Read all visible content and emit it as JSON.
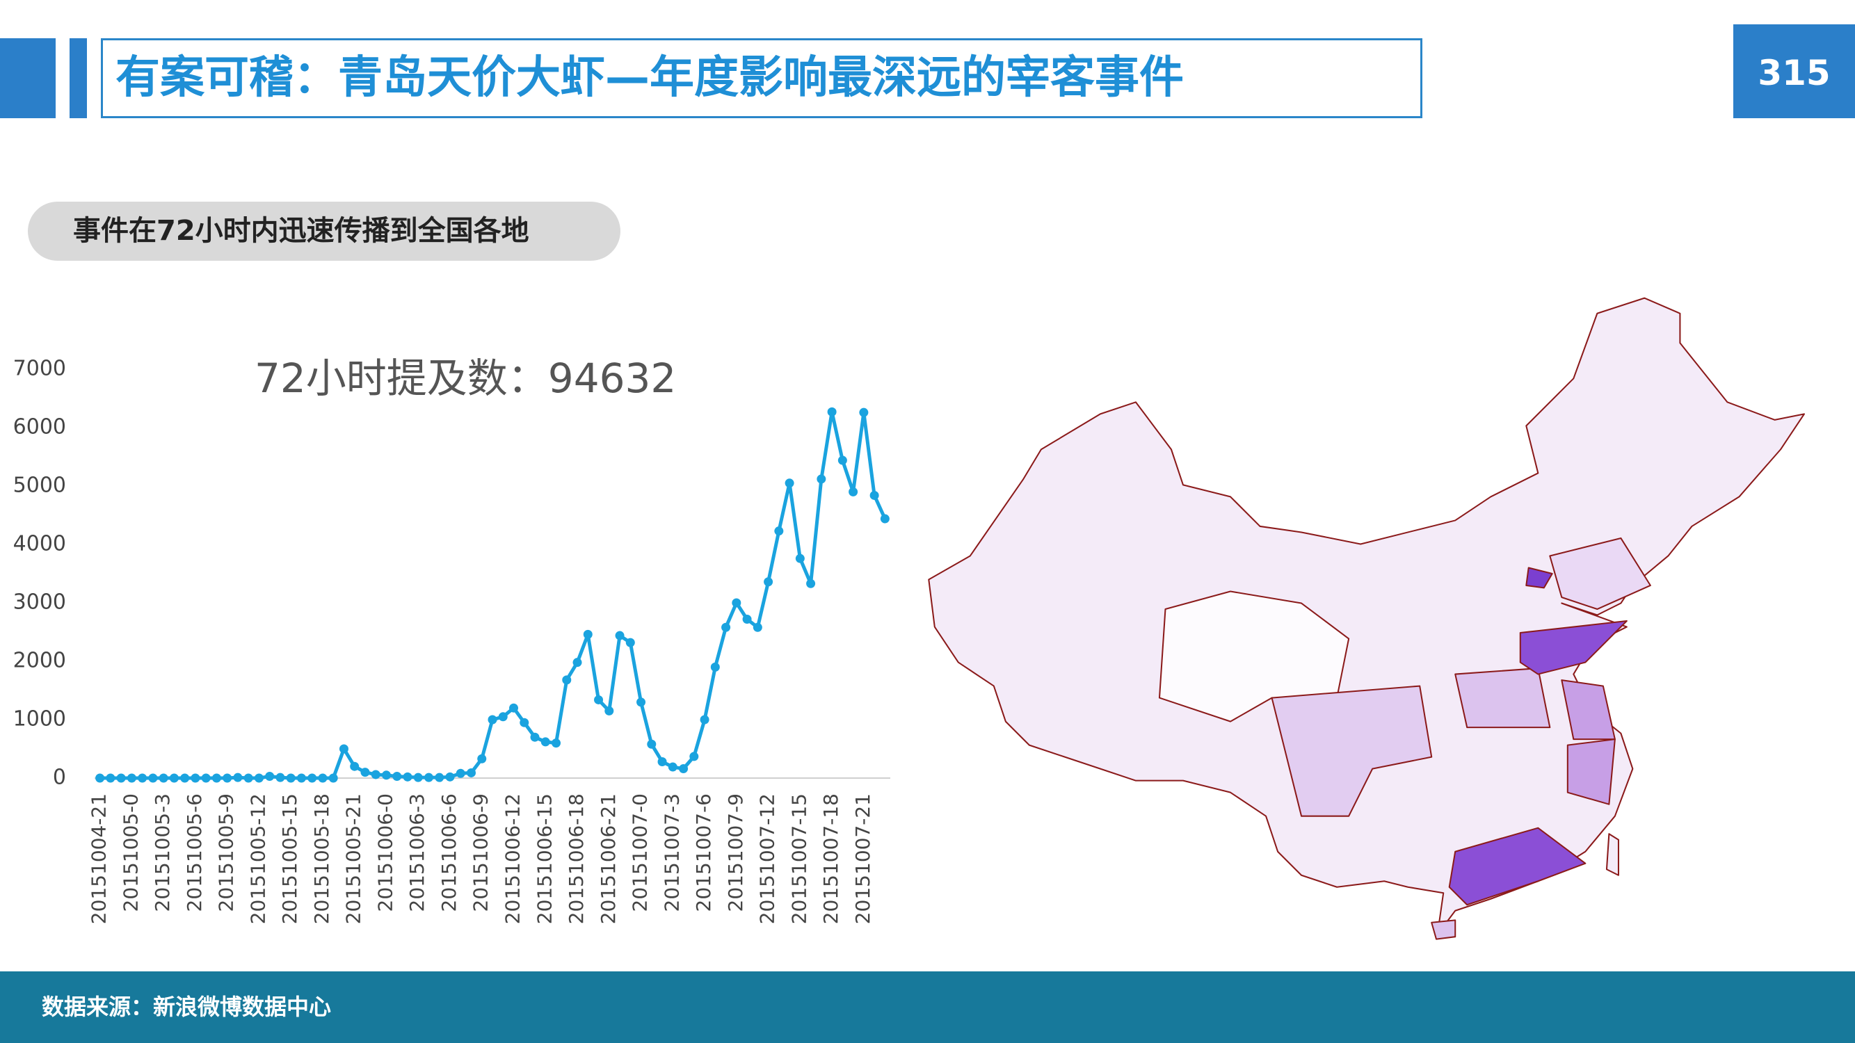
{
  "header": {
    "title": "有案可稽：青岛天价大虾—年度影响最深远的宰客事件",
    "page_number": "315",
    "subtitle": "事件在72小时内迅速传播到全国各地"
  },
  "footer": {
    "source": "数据来源：新浪微博数据中心"
  },
  "chart_data": {
    "type": "line",
    "annotation": "72小时提及数：94632",
    "categories": [
      "20151004-21",
      null,
      null,
      "20151005-0",
      null,
      null,
      "20151005-3",
      null,
      null,
      "20151005-6",
      null,
      null,
      "20151005-9",
      null,
      null,
      "20151005-12",
      null,
      null,
      "20151005-15",
      null,
      null,
      "20151005-18",
      null,
      null,
      "20151005-21",
      null,
      null,
      "20151006-0",
      null,
      null,
      "20151006-3",
      null,
      null,
      "20151006-6",
      null,
      null,
      "20151006-9",
      null,
      null,
      "20151006-12",
      null,
      null,
      "20151006-15",
      null,
      null,
      "20151006-18",
      null,
      null,
      "20151006-21",
      null,
      null,
      "20151007-0",
      null,
      null,
      "20151007-3",
      null,
      null,
      "20151007-6",
      null,
      null,
      "20151007-9",
      null,
      null,
      "20151007-12",
      null,
      null,
      "20151007-15",
      null,
      null,
      "20151007-18",
      null,
      null,
      "20151007-21",
      null,
      null
    ],
    "series": [
      {
        "name": "提及数",
        "color": "#1aa3df",
        "values": [
          0,
          0,
          0,
          0,
          0,
          0,
          0,
          0,
          0,
          0,
          0,
          0,
          0,
          10,
          0,
          0,
          30,
          10,
          0,
          0,
          0,
          0,
          0,
          500,
          200,
          100,
          60,
          50,
          30,
          20,
          10,
          10,
          10,
          20,
          80,
          90,
          330,
          1000,
          1050,
          1200,
          950,
          700,
          620,
          600,
          1680,
          1980,
          2460,
          1340,
          1150,
          2440,
          2320,
          1300,
          580,
          280,
          190,
          160,
          370,
          1000,
          1900,
          2580,
          3000,
          2720,
          2580,
          3360,
          4230,
          5050,
          3760,
          3330,
          5120,
          6270,
          5440,
          4900,
          6260,
          4840,
          4440
        ]
      }
    ],
    "ylim": [
      0,
      7000
    ],
    "yticks": [
      0,
      1000,
      2000,
      3000,
      4000,
      5000,
      6000,
      7000
    ]
  }
}
